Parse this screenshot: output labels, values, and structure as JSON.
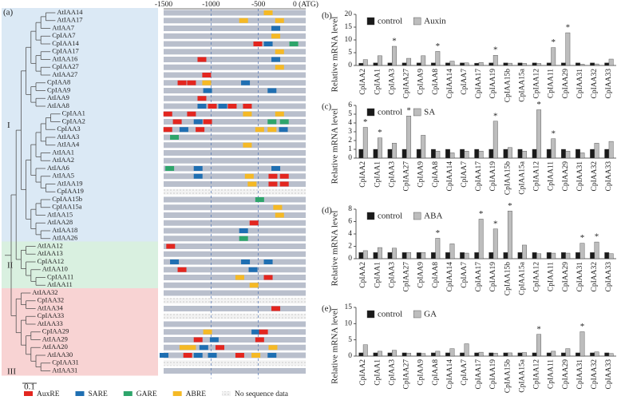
{
  "panel_a": {
    "label": "(a)",
    "xlim": [
      -1500,
      0
    ],
    "xticks": [
      -1500,
      -1000,
      -500,
      {
        "value": 0,
        "label": "0 (ATG)"
      }
    ],
    "leaves": [
      "AtIAA14",
      "AtIAA17",
      "AtIAA7",
      "CpIAA7",
      "CpIAA14",
      "CpIAA17",
      "AtIAA16",
      "CpIAA27",
      "AtIAA27",
      "CpIAA8",
      "CpIAA9",
      "AtIAA9",
      "AtIAA8",
      "CpIAA1",
      "CpIAA2",
      "CpIAA3",
      "AtIAA3",
      "AtIAA4",
      "AtIAA1",
      "AtIAA2",
      "AtIAA6",
      "AtIAA5",
      "AtIAA19",
      "CpIAA19",
      "CpIAA15b",
      "CpIAA15a",
      "AtIAA15",
      "AtIAA28",
      "AtIAA18",
      "AtIAA26",
      "AtIAA12",
      "AtIAA13",
      "CpIAA12",
      "AtIAA10",
      "CpIAA11",
      "AtIAA11",
      "AtIAA32",
      "CpIAA32",
      "AtIAA34",
      "CpIAA33",
      "AtIAA33",
      "CpIAA29",
      "AtIAA29",
      "AtIAA20",
      "AtIAA30",
      "CpIAA31",
      "AtIAA31"
    ],
    "clades": [
      {
        "label": "I",
        "rows": [
          0,
          29
        ],
        "color": "#dbe9f5"
      },
      {
        "label": "II",
        "rows": [
          30,
          35
        ],
        "color": "#d9f0e0"
      },
      {
        "label": "III",
        "rows": [
          36,
          46
        ],
        "color": "#f8d3d3"
      }
    ],
    "no_data_rows": [
      23,
      37,
      39,
      45
    ],
    "motif_types": [
      {
        "name": "AuxRE",
        "color": "#e3261f"
      },
      {
        "name": "SARE",
        "color": "#1f6fb2"
      },
      {
        "name": "GARE",
        "color": "#2ea56b"
      },
      {
        "name": "ABRE",
        "color": "#f5b925"
      }
    ],
    "no_data_label": "No sequence data",
    "scale_label": "0.1",
    "motifs": [
      [
        0,
        3,
        -400
      ],
      [
        1,
        3,
        -660
      ],
      [
        1,
        3,
        -280
      ],
      [
        2,
        1,
        -320
      ],
      [
        3,
        3,
        -320
      ],
      [
        4,
        0,
        -510
      ],
      [
        4,
        1,
        -400
      ],
      [
        4,
        2,
        -130
      ],
      [
        5,
        3,
        -280
      ],
      [
        6,
        0,
        -1100
      ],
      [
        6,
        1,
        -320
      ],
      [
        7,
        3,
        -280
      ],
      [
        8,
        0,
        -1050
      ],
      [
        9,
        0,
        -1310
      ],
      [
        9,
        0,
        -1210
      ],
      [
        9,
        3,
        -1050
      ],
      [
        9,
        1,
        -640
      ],
      [
        10,
        1,
        -1040
      ],
      [
        10,
        1,
        -360
      ],
      [
        11,
        0,
        -1100
      ],
      [
        12,
        1,
        -1100
      ],
      [
        12,
        0,
        -990
      ],
      [
        12,
        1,
        -880
      ],
      [
        12,
        0,
        -780
      ],
      [
        12,
        0,
        -620
      ],
      [
        13,
        0,
        -1460
      ],
      [
        13,
        0,
        -1210
      ],
      [
        13,
        3,
        -620
      ],
      [
        13,
        3,
        -280
      ],
      [
        14,
        0,
        -1360
      ],
      [
        14,
        1,
        -1140
      ],
      [
        14,
        0,
        -1040
      ],
      [
        14,
        2,
        -360
      ],
      [
        14,
        2,
        -230
      ],
      [
        15,
        0,
        -1460
      ],
      [
        15,
        1,
        -1290
      ],
      [
        15,
        0,
        -1120
      ],
      [
        15,
        3,
        -490
      ],
      [
        15,
        3,
        -360
      ],
      [
        15,
        1,
        -240
      ],
      [
        16,
        2,
        -1390
      ],
      [
        17,
        3,
        -620
      ],
      [
        20,
        2,
        -1440
      ],
      [
        20,
        1,
        -1140
      ],
      [
        20,
        1,
        -320
      ],
      [
        21,
        1,
        -1140
      ],
      [
        21,
        3,
        -600
      ],
      [
        21,
        0,
        -350
      ],
      [
        21,
        0,
        -230
      ],
      [
        22,
        3,
        -570
      ],
      [
        22,
        0,
        -350
      ],
      [
        22,
        0,
        -230
      ],
      [
        24,
        2,
        -490
      ],
      [
        25,
        3,
        -300
      ],
      [
        26,
        3,
        -280
      ],
      [
        27,
        0,
        -550
      ],
      [
        28,
        1,
        -660
      ],
      [
        29,
        2,
        -660
      ],
      [
        30,
        0,
        -1430
      ],
      [
        32,
        1,
        -1390
      ],
      [
        32,
        1,
        -640
      ],
      [
        32,
        1,
        -400
      ],
      [
        33,
        0,
        -1310
      ],
      [
        33,
        1,
        -560
      ],
      [
        34,
        3,
        -700
      ],
      [
        34,
        0,
        -400
      ],
      [
        35,
        3,
        -550
      ],
      [
        38,
        0,
        -320
      ],
      [
        41,
        3,
        -1040
      ],
      [
        41,
        1,
        -530
      ],
      [
        41,
        0,
        -450
      ],
      [
        42,
        0,
        -1140
      ],
      [
        42,
        1,
        -970
      ],
      [
        42,
        0,
        -490
      ],
      [
        43,
        3,
        -1290
      ],
      [
        43,
        3,
        -1210
      ],
      [
        43,
        1,
        -1080
      ],
      [
        43,
        0,
        -910
      ],
      [
        43,
        3,
        -350
      ],
      [
        44,
        1,
        -1500
      ],
      [
        44,
        0,
        -1250
      ],
      [
        44,
        1,
        -1140
      ],
      [
        44,
        1,
        -990
      ],
      [
        44,
        0,
        -700
      ],
      [
        44,
        3,
        -530
      ],
      [
        44,
        1,
        -360
      ]
    ]
  },
  "chart_data": [
    {
      "type": "bar",
      "panel": "(b)",
      "ylabel": "Relative mRNA level",
      "categories": [
        "CpIAA2",
        "CpIAA1",
        "CpIAA3",
        "CpIAA27",
        "CpIAA9",
        "CpIAA8",
        "CpIAA14",
        "CpIAA7",
        "CpIAA17",
        "CpIAA19",
        "CpIAA15b",
        "CpIAA15a",
        "CpIAA12",
        "CpIAA11",
        "CpIAA29",
        "CpIAA31",
        "CpIAA32",
        "CpIAA33"
      ],
      "series": [
        {
          "name": "control",
          "color": "#1a1a1a",
          "values": [
            0.9,
            1,
            1,
            1,
            1,
            1,
            1,
            1,
            0.9,
            1,
            1,
            1,
            1,
            1,
            1,
            1,
            1,
            1
          ]
        },
        {
          "name": "Auxin",
          "color": "#bdbdbd",
          "values": [
            2.3,
            3.8,
            7.5,
            2.8,
            3.8,
            5.5,
            1.7,
            1.0,
            1.2,
            4.0,
            0.9,
            0.8,
            0.8,
            7.0,
            12.8,
            0.5,
            0.6,
            2.5
          ]
        }
      ],
      "sig": [
        2,
        5,
        9,
        13,
        14
      ],
      "sig_label": "*",
      "ylim": [
        0,
        20
      ],
      "yticks": [
        0,
        5,
        10,
        15,
        20
      ]
    },
    {
      "type": "bar",
      "panel": "(c)",
      "ylabel": "Relative mRNA level",
      "categories": [
        "CpIAA2",
        "CpIAA1",
        "CpIAA3",
        "CpIAA27",
        "CpIAA9",
        "CpIAA8",
        "CpIAA14",
        "CpIAA7",
        "CpIAA17",
        "CpIAA19",
        "CpIAA15b",
        "CpIAA15a",
        "CpIAA12",
        "CpIAA11",
        "CpIAA29",
        "CpIAA31",
        "CpIAA32",
        "CpIAA33"
      ],
      "series": [
        {
          "name": "control",
          "color": "#1a1a1a",
          "values": [
            1,
            1,
            1,
            1,
            1,
            1,
            1,
            1,
            1,
            1,
            1,
            1,
            1,
            1,
            1,
            1,
            1,
            1
          ]
        },
        {
          "name": "SA",
          "color": "#bdbdbd",
          "values": [
            3.5,
            2.3,
            1.7,
            4.8,
            2.6,
            0.8,
            0.6,
            0.8,
            0.8,
            4.2,
            1.2,
            0.8,
            5.5,
            2.2,
            0.8,
            0.6,
            1.7,
            1.9
          ]
        }
      ],
      "sig": [
        0,
        1,
        3,
        9,
        12,
        13
      ],
      "sig_label": "*",
      "ylim": [
        0,
        6
      ],
      "yticks": [
        0,
        1,
        2,
        3,
        4,
        5,
        6
      ]
    },
    {
      "type": "bar",
      "panel": "(d)",
      "ylabel": "Relative mRNA level",
      "categories": [
        "CpIAA2",
        "CpIAA1",
        "CpIAA3",
        "CpIAA27",
        "CpIAA9",
        "CpIAA8",
        "CpIAA14",
        "CpIAA7",
        "CpIAA17",
        "CpIAA19",
        "CpIAA15b",
        "CpIAA15a",
        "CpIAA12",
        "CpIAA11",
        "CpIAA29",
        "CpIAA31",
        "CpIAA32",
        "CpIAA33"
      ],
      "series": [
        {
          "name": "control",
          "color": "#1a1a1a",
          "values": [
            1,
            1,
            1,
            1,
            1,
            1,
            1,
            1,
            1,
            1,
            1,
            1,
            1,
            1,
            1,
            1,
            1,
            1
          ]
        },
        {
          "name": "ABA",
          "color": "#bdbdbd",
          "values": [
            1.3,
            1.8,
            1.7,
            1.0,
            1.0,
            3.3,
            2.4,
            0.9,
            6.4,
            4.8,
            7.7,
            2.2,
            0.8,
            0.9,
            0.9,
            2.5,
            2.7,
            0.8
          ]
        }
      ],
      "sig": [
        5,
        8,
        9,
        10,
        15,
        16
      ],
      "sig_label": "*",
      "ylim": [
        0,
        8
      ],
      "yticks": [
        0,
        2,
        4,
        6,
        8
      ]
    },
    {
      "type": "bar",
      "panel": "(e)",
      "ylabel": "Relative mRNA level",
      "categories": [
        "CpIAA2",
        "CpIAA1",
        "CpIAA3",
        "CpIAA27",
        "CpIAA9",
        "CpIAA8",
        "CpIAA14",
        "CpIAA7",
        "CpIAA17",
        "CpIAA19",
        "CpIAA15b",
        "CpIAA15a",
        "CpIAA12",
        "CpIAA11",
        "CpIAA29",
        "CpIAA31",
        "CpIAA32",
        "CpIAA33"
      ],
      "series": [
        {
          "name": "control",
          "color": "#1a1a1a",
          "values": [
            1,
            1,
            1,
            1,
            1,
            1,
            1,
            1,
            1,
            1,
            1,
            1,
            1,
            1,
            1,
            1,
            1,
            1
          ]
        },
        {
          "name": "GA",
          "color": "#bdbdbd",
          "values": [
            3.5,
            1.5,
            1.8,
            0.9,
            0.8,
            1.5,
            2.3,
            3.8,
            1.2,
            0.9,
            1.0,
            1.1,
            6.7,
            1.5,
            2.3,
            7.5,
            1.3,
            0.8
          ]
        }
      ],
      "sig": [
        12,
        15
      ],
      "sig_label": "*",
      "ylim": [
        0,
        15
      ],
      "yticks": [
        0,
        5,
        10,
        15
      ]
    }
  ]
}
